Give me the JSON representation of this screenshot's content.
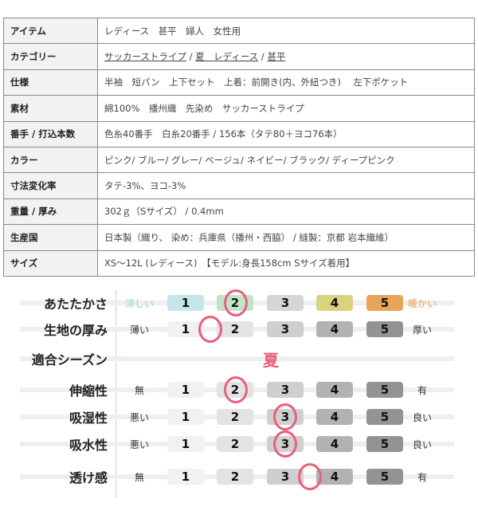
{
  "spec": [
    {
      "k": "アイテム",
      "v": "レディース　甚平　婦人　女性用"
    },
    {
      "k": "カテゴリー",
      "links": [
        "サッカーストライプ",
        "夏　レディース",
        "甚平"
      ],
      "sep": " / "
    },
    {
      "k": "仕様",
      "v": "半袖　短パン　上下セット　上着：前開き(内、外紐つき)　 左下ポケット"
    },
    {
      "k": "素材",
      "v": "綿100%　播州織　先染め　サッカーストライプ"
    },
    {
      "k": "番手 / 打込本数",
      "v": "色糸40番手　白糸20番手 / 156本（タテ80＋ヨコ76本）"
    },
    {
      "k": "カラー",
      "v": "ピンク/ ブルー/ グレー/ ベージュ/ ネイビー/ ブラック/ ディープピンク"
    },
    {
      "k": "寸法変化率",
      "v": "タテ-3%、ヨコ-3%"
    },
    {
      "k": "重量 / 厚み",
      "v": "302ｇ（Sサイズ） / 0.4mm"
    },
    {
      "k": "生産国",
      "v": "日本製（織り、 染め：兵庫県（播州・西脇） / 縫製：京都 岩本織維）"
    },
    {
      "k": "サイズ",
      "v": "XS～12L (レディース)　【モデル:身長158cm Sサイズ着用】"
    }
  ],
  "scale_labels": [
    "1",
    "2",
    "3",
    "4",
    "5"
  ],
  "highlight_color": "#e8607a",
  "ratings": [
    {
      "label": "あたたかさ",
      "left": "涼しい",
      "right": "暖かい",
      "value": 2,
      "left_color": "#8fcfd6",
      "right_color": "#e8a45a",
      "colors": [
        "#c4e6ea",
        "#c3e2c9",
        "#d6d6d6",
        "#d9d37e",
        "#e8a45a"
      ]
    },
    {
      "label": "生地の厚み",
      "left": "薄い",
      "right": "厚い",
      "value": 1.5
    },
    {
      "label": "適合シーズン",
      "season": "夏"
    },
    {
      "label": "伸縮性",
      "left": "無",
      "right": "有",
      "value": 2
    },
    {
      "label": "吸湿性",
      "left": "悪い",
      "right": "良い",
      "value": 3
    },
    {
      "label": "吸水性",
      "left": "悪い",
      "right": "良い",
      "value": 3
    },
    {
      "label": "透け感",
      "left": "無",
      "right": "有",
      "value": 3.5
    }
  ],
  "default_colors": [
    "#f1f1f1",
    "#e3e3e3",
    "#cfcfcf",
    "#b2b2b2",
    "#939393"
  ]
}
